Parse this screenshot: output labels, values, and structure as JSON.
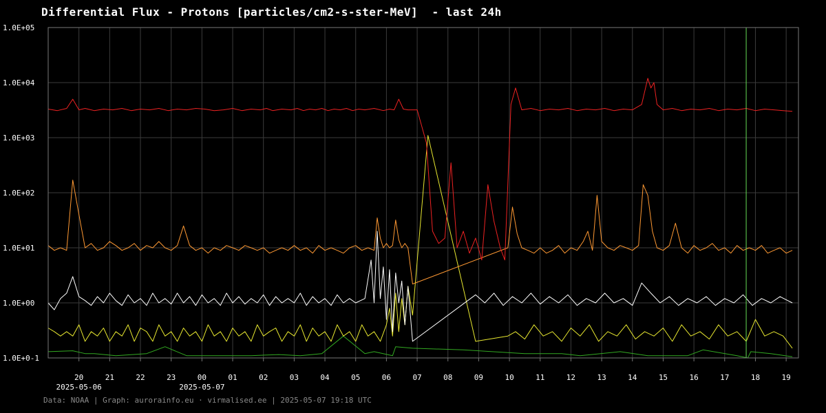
{
  "title": "Differential Flux - Protons [particles/cm2-s-ster-MeV]  - last 24h",
  "footer": "Data: NOAA | Graph: aurorainfo.eu · virmalised.ee | 2025-05-07 19:18 UTC",
  "chart_data": {
    "type": "line",
    "title": "Differential Flux - Protons [particles/cm2-s-ster-MeV]  - last 24h",
    "yscale": "log",
    "ylim": [
      0.1,
      100000
    ],
    "y_ticks": [
      0.1,
      1,
      10,
      100,
      1000,
      10000,
      100000
    ],
    "y_tick_labels": [
      "1.0E+0-1",
      "1.0E+00",
      "1.0E+01",
      "1.0E+02",
      "1.0E+03",
      "1.0E+04",
      "1.0E+05"
    ],
    "xlim": [
      19,
      43.4
    ],
    "x_ticks": [
      20,
      21,
      22,
      23,
      24,
      25,
      26,
      27,
      28,
      29,
      30,
      31,
      32,
      33,
      34,
      35,
      36,
      37,
      38,
      39,
      40,
      41,
      42,
      43
    ],
    "x_tick_labels": [
      "20",
      "21",
      "22",
      "23",
      "00",
      "01",
      "02",
      "03",
      "04",
      "05",
      "06",
      "07",
      "08",
      "09",
      "10",
      "11",
      "12",
      "13",
      "14",
      "15",
      "16",
      "17",
      "18",
      "19"
    ],
    "date_labels": [
      {
        "text": "2025-05-06",
        "hour": 20
      },
      {
        "text": "2025-05-07",
        "hour": 24
      }
    ],
    "marker_hour": 41.7,
    "grid": true,
    "colors": {
      "grid": "#3c3c3c",
      "axis": "#777777",
      "marker": "#66dd55",
      "text": "#ffffff"
    },
    "series": [
      {
        "color": "#33aa22",
        "x": [
          19,
          19.8,
          20.2,
          20.5,
          21.2,
          22.2,
          22.8,
          23.5,
          24.5,
          25.6,
          26.5,
          27.2,
          27.9,
          28.6,
          29.3,
          29.6,
          30.2,
          30.3,
          30.85,
          32.5,
          34.5,
          35.7,
          36.3,
          37.6,
          38.5,
          39.8,
          40.3,
          41.4,
          41.75,
          41.85,
          42.5,
          43.2
        ],
        "y": [
          0.13,
          0.135,
          0.12,
          0.12,
          0.11,
          0.12,
          0.16,
          0.11,
          0.11,
          0.11,
          0.115,
          0.11,
          0.12,
          0.25,
          0.12,
          0.13,
          0.11,
          0.16,
          0.15,
          0.14,
          0.12,
          0.12,
          0.11,
          0.13,
          0.11,
          0.11,
          0.14,
          0.11,
          0.1,
          0.13,
          0.12,
          0.105
        ]
      },
      {
        "color": "#e8e830",
        "x": [
          19,
          19.2,
          19.4,
          19.6,
          19.8,
          20.0,
          20.2,
          20.4,
          20.6,
          20.8,
          21.0,
          21.2,
          21.4,
          21.6,
          21.8,
          22.0,
          22.2,
          22.4,
          22.6,
          22.8,
          23.0,
          23.2,
          23.4,
          23.6,
          23.8,
          24.0,
          24.2,
          24.4,
          24.6,
          24.8,
          25.0,
          25.2,
          25.4,
          25.6,
          25.8,
          26.0,
          26.2,
          26.4,
          26.6,
          26.8,
          27.0,
          27.2,
          27.4,
          27.6,
          27.8,
          28.0,
          28.2,
          28.4,
          28.6,
          28.8,
          29.0,
          29.2,
          29.4,
          29.6,
          29.8,
          30.0,
          30.1,
          30.2,
          30.3,
          30.4,
          30.5,
          30.6,
          30.7,
          30.85,
          31.35,
          32.9,
          33.95,
          34.2,
          34.5,
          34.8,
          35.1,
          35.4,
          35.7,
          36.0,
          36.3,
          36.6,
          36.9,
          37.2,
          37.5,
          37.8,
          38.1,
          38.4,
          38.7,
          39.0,
          39.3,
          39.6,
          39.9,
          40.2,
          40.5,
          40.8,
          41.1,
          41.4,
          41.7,
          42.0,
          42.3,
          42.6,
          42.9,
          43.2
        ],
        "y": [
          0.35,
          0.3,
          0.25,
          0.3,
          0.25,
          0.4,
          0.2,
          0.3,
          0.25,
          0.35,
          0.2,
          0.3,
          0.25,
          0.4,
          0.2,
          0.35,
          0.3,
          0.2,
          0.4,
          0.25,
          0.3,
          0.2,
          0.35,
          0.25,
          0.3,
          0.2,
          0.4,
          0.25,
          0.3,
          0.2,
          0.35,
          0.25,
          0.3,
          0.2,
          0.4,
          0.25,
          0.3,
          0.35,
          0.2,
          0.3,
          0.25,
          0.4,
          0.2,
          0.35,
          0.25,
          0.3,
          0.2,
          0.4,
          0.25,
          0.3,
          0.2,
          0.4,
          0.25,
          0.3,
          0.2,
          0.4,
          0.8,
          0.25,
          1.5,
          0.3,
          1.2,
          0.4,
          2.0,
          0.6,
          1100,
          0.2,
          0.25,
          0.3,
          0.22,
          0.4,
          0.25,
          0.3,
          0.2,
          0.35,
          0.25,
          0.4,
          0.2,
          0.3,
          0.25,
          0.4,
          0.22,
          0.3,
          0.25,
          0.35,
          0.2,
          0.4,
          0.25,
          0.3,
          0.22,
          0.4,
          0.25,
          0.3,
          0.2,
          0.5,
          0.25,
          0.3,
          0.25,
          0.15
        ]
      },
      {
        "color": "#ffffff",
        "x": [
          19,
          19.2,
          19.4,
          19.6,
          19.8,
          20.0,
          20.2,
          20.4,
          20.6,
          20.8,
          21.0,
          21.2,
          21.4,
          21.6,
          21.8,
          22.0,
          22.2,
          22.4,
          22.6,
          22.8,
          23.0,
          23.2,
          23.4,
          23.6,
          23.8,
          24.0,
          24.2,
          24.4,
          24.6,
          24.8,
          25.0,
          25.2,
          25.4,
          25.6,
          25.8,
          26.0,
          26.2,
          26.4,
          26.6,
          26.8,
          27.0,
          27.2,
          27.4,
          27.6,
          27.8,
          28.0,
          28.2,
          28.4,
          28.6,
          28.8,
          29.0,
          29.3,
          29.5,
          29.6,
          29.7,
          29.8,
          29.9,
          30.0,
          30.1,
          30.2,
          30.3,
          30.4,
          30.5,
          30.6,
          30.7,
          30.85,
          32.9,
          33.2,
          33.5,
          33.8,
          34.1,
          34.4,
          34.7,
          35.0,
          35.3,
          35.6,
          35.9,
          36.2,
          36.5,
          36.8,
          37.1,
          37.4,
          37.7,
          38.0,
          38.3,
          38.6,
          38.9,
          39.2,
          39.5,
          39.8,
          40.1,
          40.4,
          40.7,
          41.0,
          41.3,
          41.6,
          41.9,
          42.2,
          42.5,
          42.8,
          43.2
        ],
        "y": [
          1.0,
          0.75,
          1.2,
          1.5,
          3.0,
          1.3,
          1.1,
          0.9,
          1.3,
          1.0,
          1.5,
          1.1,
          0.9,
          1.4,
          1.0,
          1.2,
          0.9,
          1.5,
          1.0,
          1.2,
          0.95,
          1.5,
          1.0,
          1.3,
          0.9,
          1.4,
          1.0,
          1.2,
          0.9,
          1.5,
          1.0,
          1.3,
          0.95,
          1.2,
          1.0,
          1.4,
          0.9,
          1.3,
          1.0,
          1.2,
          1.0,
          1.5,
          0.9,
          1.3,
          1.0,
          1.2,
          0.9,
          1.4,
          1.0,
          1.2,
          1.0,
          1.2,
          6.0,
          1.0,
          20.0,
          1.2,
          4.5,
          0.5,
          4.0,
          0.3,
          3.5,
          1.0,
          2.5,
          0.4,
          2.0,
          0.2,
          1.4,
          1.0,
          1.5,
          0.9,
          1.3,
          1.0,
          1.5,
          0.95,
          1.3,
          1.0,
          1.4,
          0.9,
          1.2,
          1.0,
          1.5,
          1.0,
          1.2,
          0.9,
          2.3,
          1.5,
          1.0,
          1.3,
          0.9,
          1.2,
          1.0,
          1.3,
          0.9,
          1.2,
          1.0,
          1.4,
          0.9,
          1.2,
          1.0,
          1.3,
          1.0
        ]
      },
      {
        "color": "#ff9933",
        "x": [
          19,
          19.2,
          19.4,
          19.6,
          19.8,
          20.0,
          20.2,
          20.4,
          20.6,
          20.8,
          21.0,
          21.2,
          21.4,
          21.6,
          21.8,
          22.0,
          22.2,
          22.4,
          22.6,
          22.8,
          23.0,
          23.2,
          23.4,
          23.6,
          23.8,
          24.0,
          24.2,
          24.4,
          24.6,
          24.8,
          25.0,
          25.2,
          25.4,
          25.6,
          25.8,
          26.0,
          26.2,
          26.4,
          26.6,
          26.8,
          27.0,
          27.2,
          27.4,
          27.6,
          27.8,
          28.0,
          28.2,
          28.4,
          28.6,
          28.8,
          29.0,
          29.2,
          29.4,
          29.6,
          29.7,
          29.8,
          29.9,
          30.0,
          30.1,
          30.2,
          30.3,
          30.4,
          30.5,
          30.6,
          30.7,
          30.85,
          33.95,
          34.1,
          34.25,
          34.4,
          34.6,
          34.8,
          35.0,
          35.2,
          35.4,
          35.6,
          35.8,
          36.0,
          36.2,
          36.4,
          36.55,
          36.7,
          36.85,
          37.0,
          37.2,
          37.4,
          37.6,
          37.8,
          38.0,
          38.2,
          38.35,
          38.5,
          38.65,
          38.8,
          39.0,
          39.2,
          39.4,
          39.6,
          39.8,
          40.0,
          40.2,
          40.4,
          40.6,
          40.8,
          41.0,
          41.2,
          41.4,
          41.6,
          41.8,
          42.0,
          42.2,
          42.4,
          42.6,
          42.8,
          43.0,
          43.2
        ],
        "y": [
          11,
          9,
          10,
          9,
          170,
          40,
          10,
          12,
          9,
          10,
          13,
          11,
          9,
          10,
          12,
          9,
          11,
          10,
          13,
          10,
          9,
          11,
          25,
          11,
          9,
          10,
          8,
          10,
          9,
          11,
          10,
          9,
          11,
          10,
          9,
          10,
          8,
          9,
          10,
          9,
          11,
          9,
          10,
          8,
          11,
          9,
          10,
          9,
          8,
          10,
          11,
          9,
          10,
          9,
          35,
          15,
          10,
          12,
          10,
          11,
          32,
          14,
          10,
          12,
          10,
          2.2,
          10,
          55,
          18,
          10,
          9,
          8,
          10,
          8,
          9,
          11,
          8,
          10,
          9,
          13,
          20,
          9,
          90,
          13,
          10,
          9,
          11,
          10,
          9,
          11,
          140,
          90,
          20,
          10,
          9,
          11,
          28,
          10,
          8,
          11,
          9,
          10,
          12,
          9,
          10,
          8,
          11,
          9,
          10,
          9,
          11,
          8,
          9,
          10,
          8,
          9
        ]
      },
      {
        "color": "#ee2222",
        "x": [
          19,
          19.3,
          19.6,
          19.8,
          20.0,
          20.2,
          20.5,
          20.8,
          21.1,
          21.4,
          21.7,
          22.0,
          22.3,
          22.6,
          22.9,
          23.2,
          23.5,
          23.8,
          24.1,
          24.4,
          24.7,
          25.0,
          25.3,
          25.6,
          25.9,
          26.1,
          26.3,
          26.6,
          26.9,
          27.1,
          27.3,
          27.5,
          27.7,
          27.9,
          28.1,
          28.3,
          28.5,
          28.7,
          28.9,
          29.1,
          29.3,
          29.6,
          29.9,
          30.1,
          30.25,
          30.4,
          30.55,
          30.7,
          31.0,
          31.3,
          31.5,
          31.7,
          31.9,
          32.1,
          32.3,
          32.5,
          32.7,
          32.9,
          33.1,
          33.3,
          33.5,
          33.7,
          33.85,
          34.05,
          34.2,
          34.4,
          34.7,
          35.0,
          35.3,
          35.6,
          35.9,
          36.2,
          36.5,
          36.8,
          37.1,
          37.4,
          37.7,
          38.0,
          38.3,
          38.5,
          38.6,
          38.7,
          38.8,
          39.0,
          39.3,
          39.6,
          39.9,
          40.2,
          40.5,
          40.8,
          41.1,
          41.4,
          41.7,
          42.0,
          42.3,
          42.6,
          42.9,
          43.2
        ],
        "y": [
          3300,
          3100,
          3400,
          5000,
          3200,
          3400,
          3100,
          3300,
          3200,
          3400,
          3100,
          3300,
          3200,
          3400,
          3100,
          3300,
          3200,
          3400,
          3300,
          3100,
          3200,
          3400,
          3100,
          3300,
          3200,
          3400,
          3100,
          3300,
          3200,
          3400,
          3100,
          3300,
          3200,
          3400,
          3100,
          3300,
          3200,
          3400,
          3100,
          3300,
          3200,
          3400,
          3100,
          3300,
          3200,
          5000,
          3300,
          3200,
          3200,
          800,
          20,
          12,
          15,
          350,
          10,
          20,
          8,
          15,
          6,
          140,
          30,
          10,
          6,
          4000,
          8000,
          3200,
          3400,
          3100,
          3300,
          3200,
          3400,
          3100,
          3300,
          3200,
          3400,
          3100,
          3300,
          3200,
          4000,
          12000,
          8000,
          10000,
          4000,
          3200,
          3400,
          3100,
          3300,
          3200,
          3400,
          3100,
          3300,
          3200,
          3400,
          3100,
          3300,
          3200,
          3100,
          3000
        ]
      }
    ]
  }
}
